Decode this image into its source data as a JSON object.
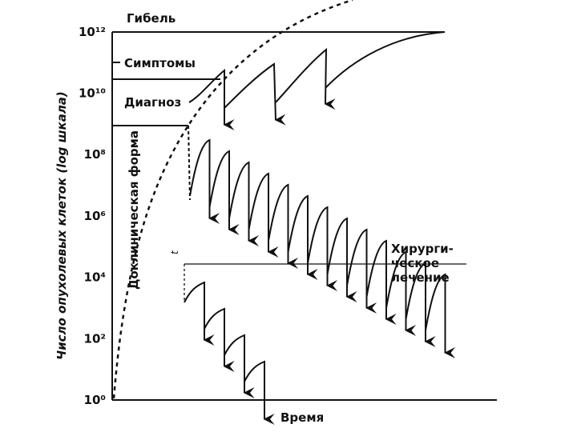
{
  "axis": {
    "title": "Число опухолевых клеток (log шкала)",
    "x_title": "Время",
    "ticks": [
      "10⁰",
      "10²",
      "10⁴",
      "10⁶",
      "10⁸",
      "10¹⁰",
      "10¹²"
    ]
  },
  "labels": {
    "death": "Гибель",
    "symptoms": "Симптомы",
    "diagnosis": "Диагноз",
    "preclinical": "Доклиническая форма",
    "surgery": [
      "Хирурги-",
      "ческое",
      "лечение"
    ],
    "t": "t"
  }
}
